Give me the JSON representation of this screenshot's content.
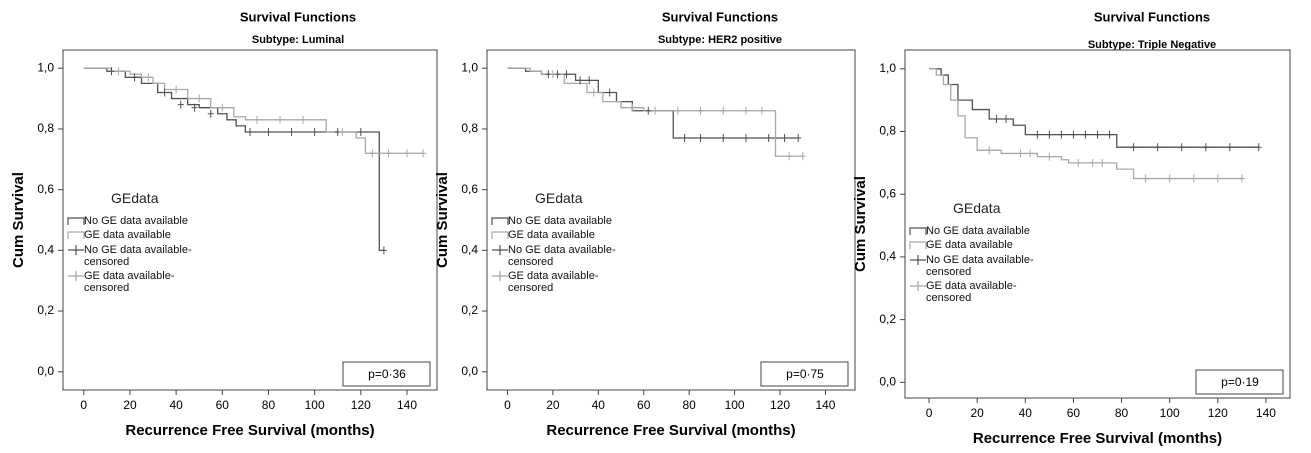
{
  "chart_data": [
    {
      "type": "line",
      "title": "Survival Functions",
      "subtitle": "Subtype: Luminal",
      "xlabel": "Recurrence Free Survival (months)",
      "ylabel": "Cum Survival",
      "legend_title": "GEdata",
      "annotation": "p=0·36",
      "xlim": [
        -9,
        153
      ],
      "ylim": [
        -0.06,
        1.06
      ],
      "xticks": [
        0,
        20,
        40,
        60,
        80,
        100,
        120,
        140
      ],
      "yticks": [
        {
          "value": 0,
          "label": "0,0"
        },
        {
          "value": 0.2,
          "label": "0,2"
        },
        {
          "value": 0.4,
          "label": "0,4"
        },
        {
          "value": 0.6,
          "label": "0,6"
        },
        {
          "value": 0.8,
          "label": "0,8"
        },
        {
          "value": 1,
          "label": "1,0"
        }
      ],
      "series": [
        {
          "name": "No GE data available",
          "color": "#505050",
          "style": "step",
          "x": [
            0,
            10,
            18,
            25,
            32,
            38,
            45,
            50,
            58,
            62,
            66,
            70,
            128,
            130
          ],
          "values": [
            1,
            0.99,
            0.97,
            0.95,
            0.92,
            0.9,
            0.88,
            0.87,
            0.85,
            0.83,
            0.81,
            0.79,
            0.4,
            0.4
          ]
        },
        {
          "name": "GE data available",
          "color": "#a8a8a8",
          "style": "step",
          "x": [
            0,
            12,
            20,
            25,
            30,
            35,
            45,
            55,
            65,
            70,
            105,
            118,
            122,
            147
          ],
          "values": [
            1,
            0.99,
            0.98,
            0.97,
            0.95,
            0.93,
            0.9,
            0.87,
            0.84,
            0.83,
            0.79,
            0.77,
            0.72,
            0.72
          ]
        },
        {
          "name": "No GE data available-censored",
          "color": "#505050",
          "style": "censor",
          "x": [
            12,
            22,
            35,
            42,
            48,
            55,
            72,
            80,
            90,
            100,
            110,
            120,
            130
          ],
          "values": [
            0.99,
            0.97,
            0.92,
            0.88,
            0.87,
            0.85,
            0.79,
            0.79,
            0.79,
            0.79,
            0.79,
            0.79,
            0.4
          ]
        },
        {
          "name": "GE data available-censored",
          "color": "#a8a8a8",
          "style": "censor",
          "x": [
            15,
            28,
            40,
            50,
            60,
            75,
            85,
            95,
            112,
            125,
            132,
            140,
            147
          ],
          "values": [
            0.99,
            0.97,
            0.93,
            0.9,
            0.87,
            0.83,
            0.83,
            0.83,
            0.79,
            0.72,
            0.72,
            0.72,
            0.72
          ]
        }
      ]
    },
    {
      "type": "line",
      "title": "Survival Functions",
      "subtitle": "Subtype: HER2 positive",
      "xlabel": "Recurrence Free Survival (months)",
      "ylabel": "Cum Survival",
      "legend_title": "GEdata",
      "annotation": "p=0·75",
      "xlim": [
        -9,
        153
      ],
      "ylim": [
        -0.06,
        1.06
      ],
      "xticks": [
        0,
        20,
        40,
        60,
        80,
        100,
        120,
        140
      ],
      "yticks": [
        {
          "value": 0,
          "label": "0,0"
        },
        {
          "value": 0.2,
          "label": "0,2"
        },
        {
          "value": 0.4,
          "label": "0,4"
        },
        {
          "value": 0.6,
          "label": "0,6"
        },
        {
          "value": 0.8,
          "label": "0,8"
        },
        {
          "value": 1,
          "label": "1,0"
        }
      ],
      "series": [
        {
          "name": "No GE data available",
          "color": "#505050",
          "style": "step",
          "x": [
            0,
            8,
            15,
            30,
            40,
            48,
            55,
            73,
            128
          ],
          "values": [
            1,
            0.99,
            0.98,
            0.96,
            0.92,
            0.89,
            0.86,
            0.77,
            0.77
          ]
        },
        {
          "name": "GE data available",
          "color": "#a8a8a8",
          "style": "step",
          "x": [
            0,
            10,
            15,
            25,
            35,
            42,
            50,
            60,
            118,
            130
          ],
          "values": [
            1,
            0.99,
            0.98,
            0.95,
            0.92,
            0.89,
            0.87,
            0.86,
            0.71,
            0.71
          ]
        },
        {
          "name": "No GE data available-censored",
          "color": "#505050",
          "style": "censor",
          "x": [
            18,
            22,
            26,
            32,
            36,
            45,
            62,
            78,
            85,
            95,
            105,
            115,
            122,
            128
          ],
          "values": [
            0.98,
            0.98,
            0.98,
            0.96,
            0.96,
            0.92,
            0.86,
            0.77,
            0.77,
            0.77,
            0.77,
            0.77,
            0.77,
            0.77
          ]
        },
        {
          "name": "GE data available-censored",
          "color": "#a8a8a8",
          "style": "censor",
          "x": [
            20,
            38,
            55,
            65,
            75,
            85,
            95,
            105,
            112,
            124,
            130
          ],
          "values": [
            0.98,
            0.92,
            0.87,
            0.86,
            0.86,
            0.86,
            0.86,
            0.86,
            0.86,
            0.71,
            0.71
          ]
        }
      ]
    },
    {
      "type": "line",
      "title": "Survival Functions",
      "subtitle": "Subtype: Triple Negative",
      "xlabel": "Recurrence Free Survival (months)",
      "ylabel": "Cum Survival",
      "legend_title": "GEdata",
      "annotation": "p=0·19",
      "xlim": [
        -10,
        150
      ],
      "ylim": [
        -0.05,
        1.06
      ],
      "xticks": [
        0,
        20,
        40,
        60,
        80,
        100,
        120,
        140
      ],
      "yticks": [
        {
          "value": 0,
          "label": "0,0"
        },
        {
          "value": 0.2,
          "label": "0,2"
        },
        {
          "value": 0.4,
          "label": "0,4"
        },
        {
          "value": 0.6,
          "label": "0,6"
        },
        {
          "value": 0.8,
          "label": "0,8"
        },
        {
          "value": 1,
          "label": "1,0"
        }
      ],
      "series": [
        {
          "name": "No GE data available",
          "color": "#505050",
          "style": "step",
          "x": [
            0,
            5,
            8,
            12,
            18,
            25,
            35,
            40,
            78,
            137
          ],
          "values": [
            1,
            0.98,
            0.95,
            0.9,
            0.87,
            0.84,
            0.82,
            0.79,
            0.75,
            0.75
          ]
        },
        {
          "name": "GE data available",
          "color": "#a8a8a8",
          "style": "step",
          "x": [
            0,
            3,
            6,
            9,
            12,
            15,
            20,
            30,
            45,
            55,
            58,
            78,
            85,
            130
          ],
          "values": [
            1,
            0.98,
            0.95,
            0.9,
            0.85,
            0.78,
            0.74,
            0.73,
            0.72,
            0.71,
            0.7,
            0.68,
            0.65,
            0.65
          ]
        },
        {
          "name": "No GE data available-censored",
          "color": "#505050",
          "style": "censor",
          "x": [
            28,
            32,
            45,
            50,
            55,
            60,
            65,
            70,
            75,
            85,
            95,
            105,
            115,
            125,
            137
          ],
          "values": [
            0.84,
            0.84,
            0.79,
            0.79,
            0.79,
            0.79,
            0.79,
            0.79,
            0.79,
            0.75,
            0.75,
            0.75,
            0.75,
            0.75,
            0.75
          ]
        },
        {
          "name": "GE data available-censored",
          "color": "#a8a8a8",
          "style": "censor",
          "x": [
            25,
            38,
            42,
            50,
            62,
            68,
            72,
            90,
            100,
            110,
            120,
            130
          ],
          "values": [
            0.74,
            0.73,
            0.73,
            0.72,
            0.7,
            0.7,
            0.7,
            0.65,
            0.65,
            0.65,
            0.65,
            0.65
          ]
        }
      ]
    }
  ]
}
